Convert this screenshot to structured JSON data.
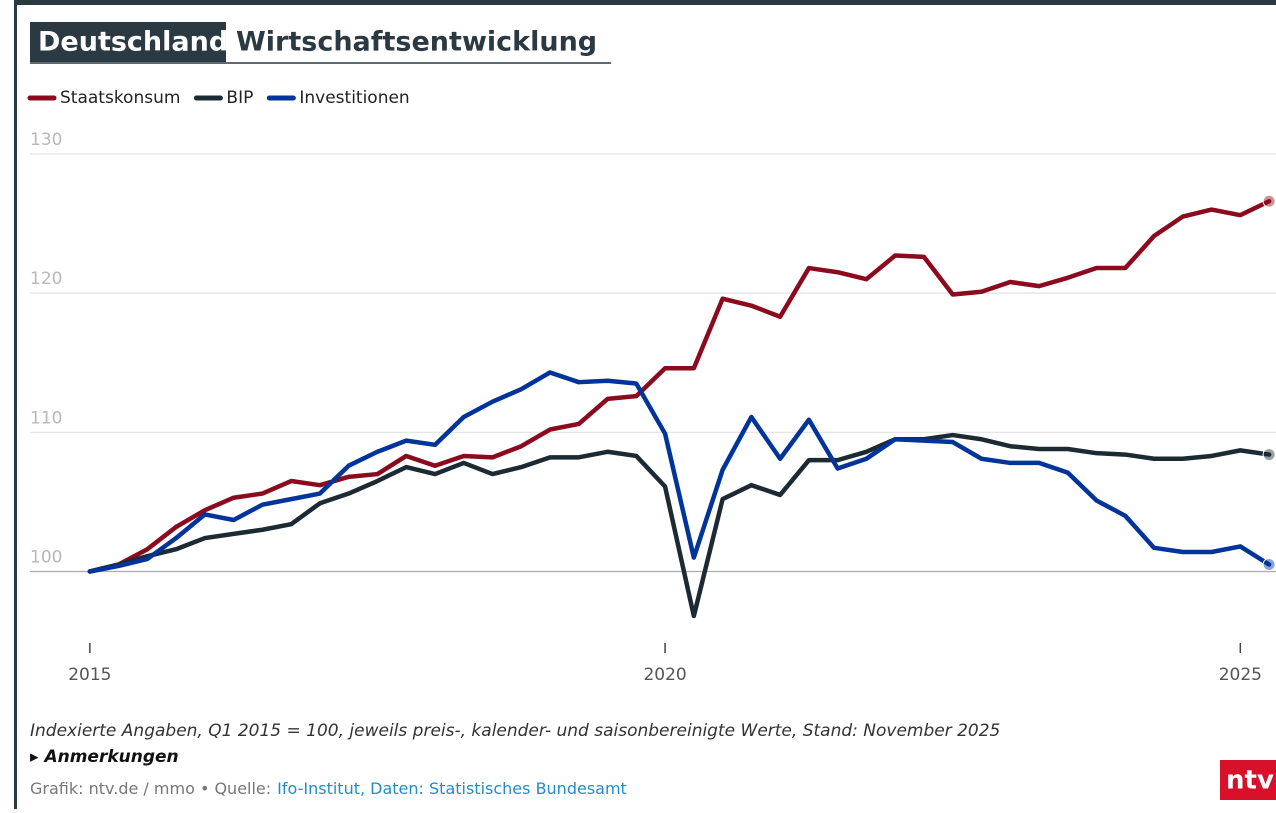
{
  "title_box": "Deutschland",
  "title_rest": "Wirtschaftsentwicklung",
  "chart_data": {
    "type": "line",
    "x": [
      2015,
      2015.25,
      2015.5,
      2015.75,
      2016,
      2016.25,
      2016.5,
      2016.75,
      2017,
      2017.25,
      2017.5,
      2017.75,
      2018,
      2018.25,
      2018.5,
      2018.75,
      2019,
      2019.25,
      2019.5,
      2019.75,
      2020,
      2020.25,
      2020.5,
      2020.75,
      2021,
      2021.25,
      2021.5,
      2021.75,
      2022,
      2022.25,
      2022.5,
      2022.75,
      2023,
      2023.25,
      2023.5,
      2023.75,
      2024,
      2024.25,
      2024.5,
      2024.75,
      2025,
      2025.25
    ],
    "series": [
      {
        "name": "Staatskonsum",
        "color": "#8b0a1e",
        "values": [
          100,
          100.5,
          101.6,
          103.2,
          104.4,
          105.3,
          105.6,
          106.5,
          106.2,
          106.8,
          107.0,
          108.3,
          107.6,
          108.3,
          108.2,
          109.0,
          110.2,
          110.6,
          112.4,
          112.6,
          114.6,
          114.6,
          119.6,
          119.1,
          118.3,
          121.8,
          121.5,
          121.0,
          122.7,
          122.6,
          119.9,
          120.1,
          120.8,
          120.5,
          121.1,
          121.8,
          121.8,
          124.1,
          125.5,
          126.0,
          125.6,
          126.6
        ]
      },
      {
        "name": "BIP",
        "color": "#1c2a33",
        "values": [
          100,
          100.5,
          101.1,
          101.6,
          102.4,
          102.7,
          103.0,
          103.4,
          104.9,
          105.6,
          106.5,
          107.5,
          107.0,
          107.8,
          107.0,
          107.5,
          108.2,
          108.2,
          108.6,
          108.3,
          106.1,
          96.8,
          105.2,
          106.2,
          105.5,
          108.0,
          108.0,
          108.6,
          109.5,
          109.5,
          109.8,
          109.5,
          109.0,
          108.8,
          108.8,
          108.5,
          108.4,
          108.1,
          108.1,
          108.3,
          108.7,
          108.4
        ]
      },
      {
        "name": "Investitionen",
        "color": "#00349a",
        "values": [
          100,
          100.4,
          100.9,
          102.4,
          104.1,
          103.7,
          104.8,
          105.2,
          105.6,
          107.6,
          108.6,
          109.4,
          109.1,
          111.1,
          112.2,
          113.1,
          114.3,
          113.6,
          113.7,
          113.5,
          109.9,
          101.0,
          107.3,
          111.1,
          108.1,
          110.9,
          107.4,
          108.1,
          109.5,
          109.4,
          109.3,
          108.1,
          107.8,
          107.8,
          107.1,
          105.1,
          104.0,
          101.7,
          101.4,
          101.4,
          101.8,
          100.5
        ]
      }
    ],
    "xlim": [
      2014.48,
      2025.31
    ],
    "xticks": [
      2015,
      2020,
      2025
    ],
    "ylim": [
      94,
      131
    ],
    "yticks": [
      100,
      110,
      120,
      130
    ],
    "grid": true
  },
  "note": "Indexierte Angaben, Q1 2015 = 100, jeweils preis-, kalender- und saisonbereinigte Werte, Stand: November 2025",
  "remarks": "▸ Anmerkungen",
  "source_prefix": "Grafik: ntv.de / mmo • Quelle:",
  "source_link": "Ifo-Institut, Daten: Statistisches Bundesamt",
  "logo": "ntv"
}
